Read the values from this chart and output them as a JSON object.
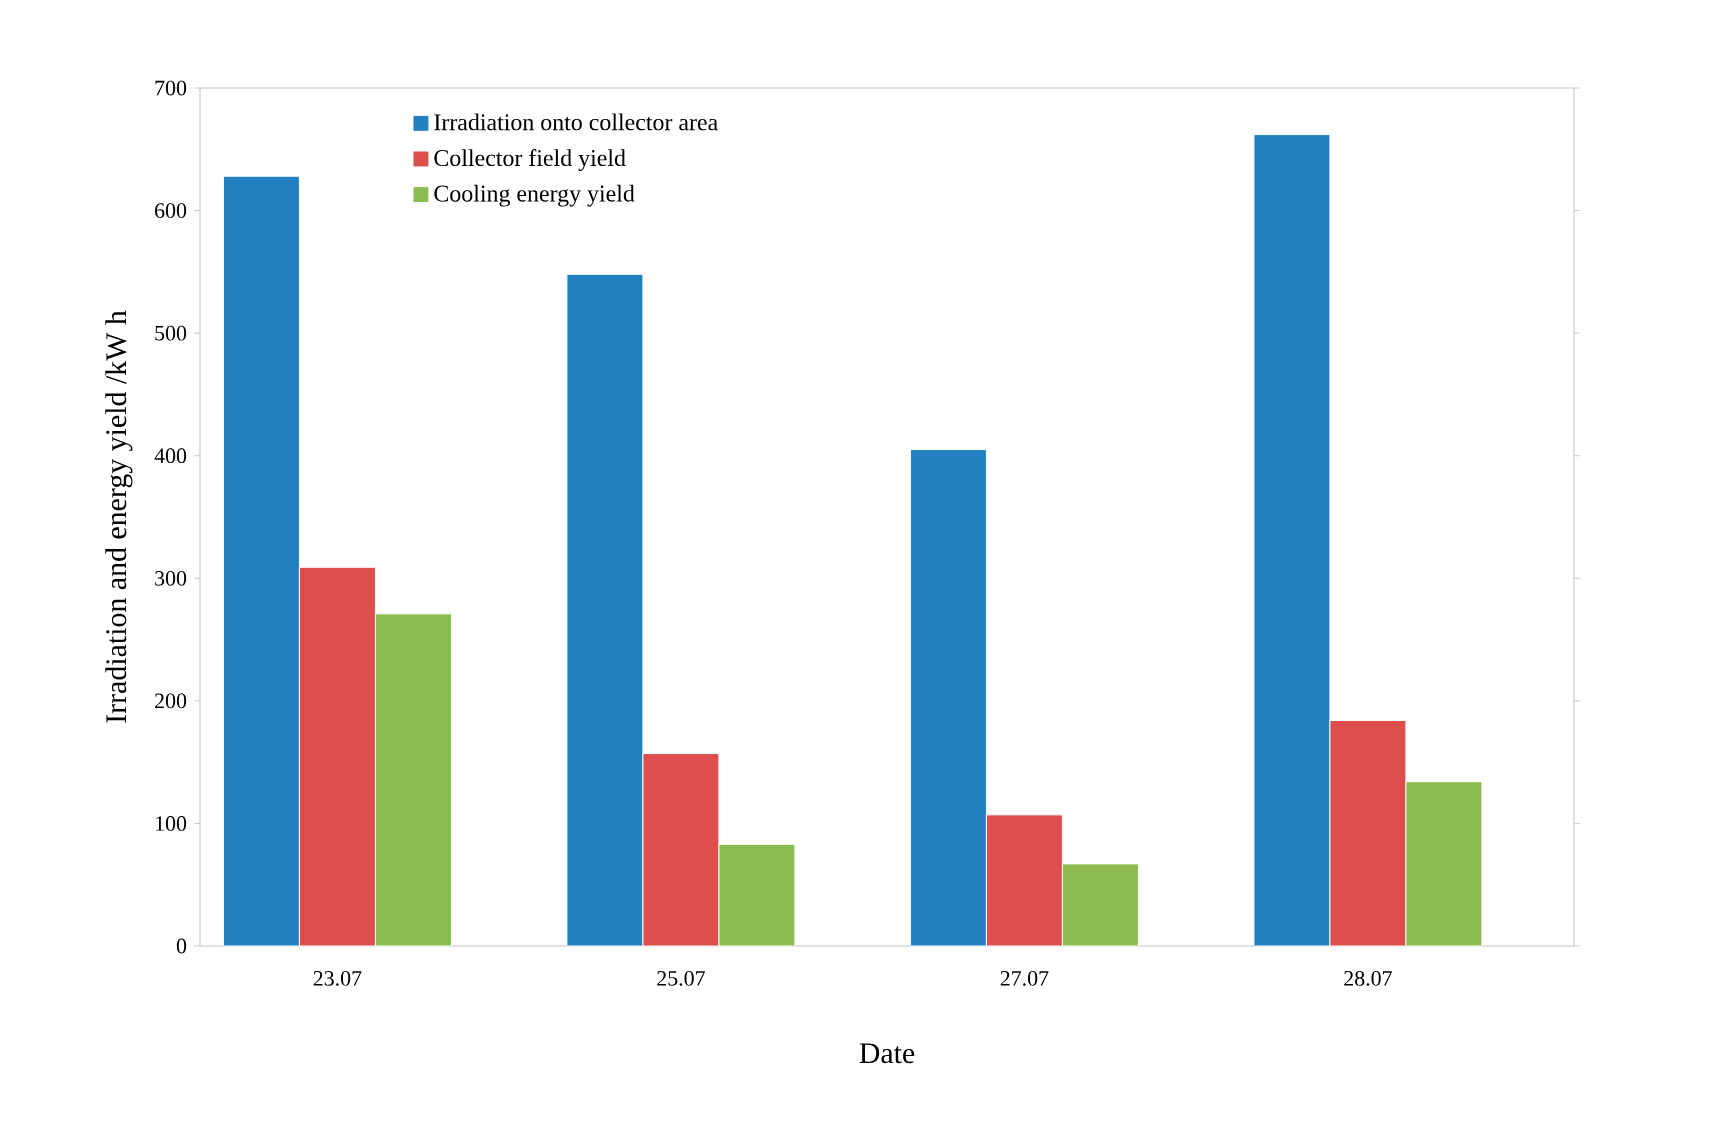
{
  "chart_data": {
    "type": "bar",
    "xlabel": "Date",
    "ylabel": "Irradiation and energy yield /kW h",
    "categories": [
      "23.07",
      "25.07",
      "27.07",
      "28.07"
    ],
    "series": [
      {
        "name": "Irradiation onto collector area",
        "color": "#2280c0",
        "values": [
          628,
          548,
          405,
          662
        ]
      },
      {
        "name": "Collector field yield",
        "color": "#dc4f4c",
        "values": [
          309,
          157,
          107,
          184
        ]
      },
      {
        "name": "Cooling energy yield",
        "color": "#8cbb50",
        "values": [
          271,
          83,
          67,
          134
        ]
      }
    ],
    "ylim": [
      0,
      700
    ],
    "yticks": [
      0,
      100,
      200,
      300,
      400,
      500,
      600,
      700
    ],
    "grid": false,
    "legend": "top left"
  }
}
